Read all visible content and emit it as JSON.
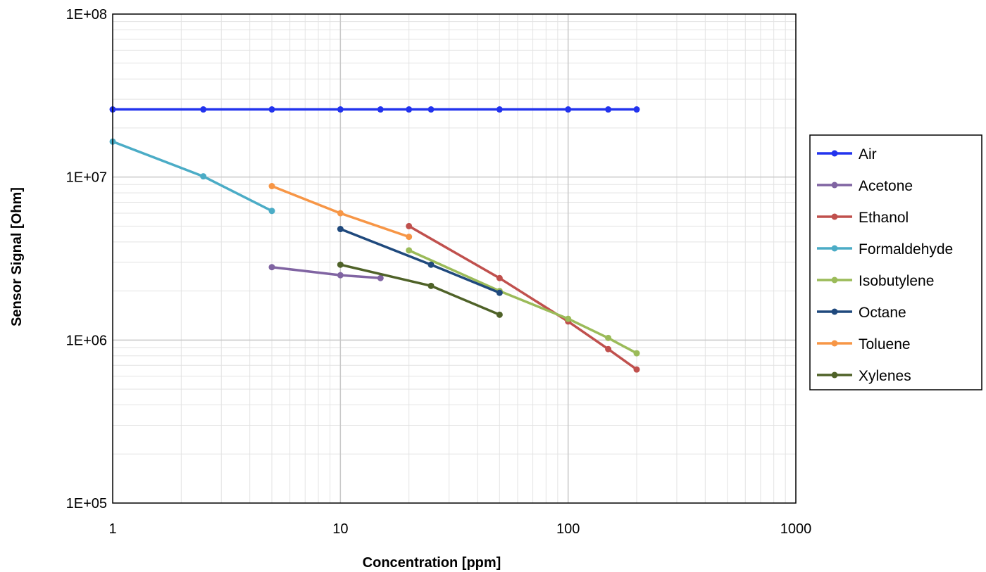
{
  "chart_data": {
    "type": "line",
    "title": "",
    "xlabel": "Concentration [ppm]",
    "ylabel": "Sensor Signal [Ohm]",
    "xscale": "log",
    "yscale": "log",
    "xlim": [
      1,
      1000
    ],
    "ylim": [
      100000,
      100000000
    ],
    "x_tick_labels": [
      "1",
      "10",
      "100",
      "1000"
    ],
    "y_tick_labels": [
      "1E+05",
      "1E+06",
      "1E+07",
      "1E+08"
    ],
    "grid": true,
    "legend_position": "right",
    "series": [
      {
        "name": "Air",
        "color": "#2233EE",
        "x": [
          1,
          2.5,
          5,
          10,
          15,
          20,
          25,
          50,
          100,
          150,
          200
        ],
        "y": [
          26000000,
          26000000,
          26000000,
          26000000,
          26000000,
          26000000,
          26000000,
          26000000,
          26000000,
          26000000,
          26000000
        ]
      },
      {
        "name": "Acetone",
        "color": "#8064A2",
        "x": [
          5,
          10,
          15
        ],
        "y": [
          2800000,
          2500000,
          2400000
        ]
      },
      {
        "name": "Ethanol",
        "color": "#C0504D",
        "x": [
          20,
          50,
          100,
          150,
          200
        ],
        "y": [
          5000000,
          2400000,
          1300000,
          880000,
          660000
        ]
      },
      {
        "name": "Formaldehyde",
        "color": "#4BACC6",
        "x": [
          1,
          2.5,
          5
        ],
        "y": [
          16500000,
          10100000,
          6200000
        ]
      },
      {
        "name": "Isobutylene",
        "color": "#9BBB59",
        "x": [
          20,
          50,
          100,
          150,
          200
        ],
        "y": [
          3550000,
          2000000,
          1350000,
          1030000,
          830000
        ]
      },
      {
        "name": "Octane",
        "color": "#1F497D",
        "x": [
          10,
          25,
          50
        ],
        "y": [
          4800000,
          2900000,
          1950000
        ]
      },
      {
        "name": "Toluene",
        "color": "#F79646",
        "x": [
          5,
          10,
          20
        ],
        "y": [
          8800000,
          6000000,
          4300000
        ]
      },
      {
        "name": "Xylenes",
        "color": "#4F6228",
        "x": [
          10,
          25,
          50
        ],
        "y": [
          2900000,
          2150000,
          1430000
        ]
      }
    ]
  }
}
